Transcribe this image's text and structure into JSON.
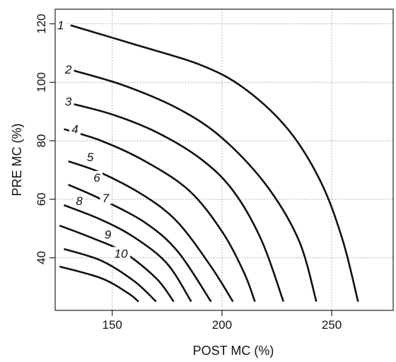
{
  "chart_data": {
    "type": "line",
    "title": "",
    "xlabel": "POST MC (%)",
    "ylabel": "PRE MC (%)",
    "xlim": [
      124,
      278
    ],
    "ylim": [
      22,
      125
    ],
    "xticks": [
      150,
      200,
      250
    ],
    "yticks": [
      40,
      60,
      80,
      100,
      120
    ],
    "xtick_labels": [
      "150",
      "200",
      "250"
    ],
    "ytick_labels": [
      "40",
      "60",
      "80",
      "100",
      "120"
    ],
    "grid": true,
    "series": [
      {
        "name": "1",
        "label": "1",
        "points": [
          [
            131,
            119.5
          ],
          [
            160,
            113
          ],
          [
            190,
            106
          ],
          [
            210,
            98
          ],
          [
            230,
            84
          ],
          [
            245,
            66
          ],
          [
            255,
            46
          ],
          [
            262,
            25
          ]
        ]
      },
      {
        "name": "2",
        "label": "2",
        "points": [
          [
            130,
            104.5
          ],
          [
            155,
            99
          ],
          [
            180,
            91
          ],
          [
            200,
            81
          ],
          [
            220,
            65
          ],
          [
            235,
            46
          ],
          [
            243,
            25
          ]
        ]
      },
      {
        "name": "3",
        "label": "3",
        "points": [
          [
            130,
            93
          ],
          [
            150,
            89
          ],
          [
            170,
            83
          ],
          [
            190,
            74
          ],
          [
            205,
            63
          ],
          [
            218,
            46
          ],
          [
            228,
            25
          ]
        ]
      },
      {
        "name": "4",
        "label": "4",
        "points": [
          [
            128,
            84
          ],
          [
            145,
            80
          ],
          [
            165,
            73
          ],
          [
            185,
            63
          ],
          [
            200,
            49
          ],
          [
            210,
            35
          ],
          [
            215,
            25
          ]
        ]
      },
      {
        "name": "5",
        "label": "5",
        "points": [
          [
            130,
            73
          ],
          [
            145,
            69
          ],
          [
            165,
            61
          ],
          [
            180,
            52
          ],
          [
            195,
            37
          ],
          [
            205,
            25
          ]
        ]
      },
      {
        "name": "6",
        "label": "6",
        "points": [
          [
            130,
            65
          ],
          [
            145,
            60
          ],
          [
            165,
            52
          ],
          [
            180,
            42
          ],
          [
            195,
            25
          ]
        ]
      },
      {
        "name": "7",
        "label": "7",
        "points": [
          [
            128,
            58
          ],
          [
            145,
            53
          ],
          [
            160,
            47
          ],
          [
            175,
            38
          ],
          [
            186,
            25
          ]
        ]
      },
      {
        "name": "8",
        "label": "8",
        "points": [
          [
            126,
            51
          ],
          [
            140,
            47
          ],
          [
            155,
            42
          ],
          [
            170,
            33
          ],
          [
            178,
            25
          ]
        ]
      },
      {
        "name": "9",
        "label": "9",
        "points": [
          [
            128,
            43
          ],
          [
            145,
            39
          ],
          [
            160,
            32
          ],
          [
            170,
            25
          ]
        ]
      },
      {
        "name": "10",
        "label": "10",
        "points": [
          [
            126,
            37
          ],
          [
            145,
            33
          ],
          [
            157,
            28
          ],
          [
            162,
            25
          ]
        ]
      }
    ],
    "contour_labels": [
      {
        "text": "1",
        "x": 126.5,
        "y": 119.5
      },
      {
        "text": "2",
        "x": 130,
        "y": 104.5
      },
      {
        "text": "3",
        "x": 130,
        "y": 93.5
      },
      {
        "text": "4",
        "x": 133,
        "y": 84
      },
      {
        "text": "5",
        "x": 140,
        "y": 74.5
      },
      {
        "text": "6",
        "x": 143,
        "y": 67.5
      },
      {
        "text": "7",
        "x": 147,
        "y": 60.5
      },
      {
        "text": "8",
        "x": 135,
        "y": 59.5
      },
      {
        "text": "9",
        "x": 148,
        "y": 48
      },
      {
        "text": "10",
        "x": 154,
        "y": 41.5
      }
    ]
  }
}
